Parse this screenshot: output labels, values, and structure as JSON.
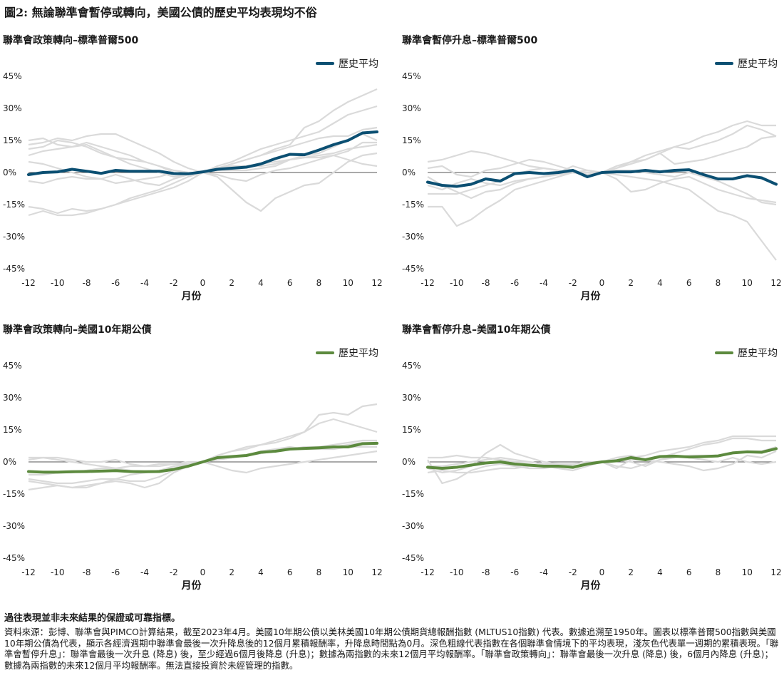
{
  "figure_title": "圖2: 無論聯準會暫停或轉向，美國公債的歷史平均表現均不俗",
  "colors": {
    "blue": "#0b4f72",
    "green": "#5c8a3e",
    "gray": "#dadada",
    "zero": "#555555"
  },
  "footnote_bold": "過往表現並非未來結果的保證或可靠指標。",
  "footnote": "資料來源：彭博、聯準會與PIMCO計算結果，截至2023年4月。美國10年期公債以美林美國10年期公債期貨總報酬指數 (MLTUS10指數) 代表。數據追溯至1950年。圖表以標準普爾500指數與美國10年期公債為代表，顯示各經濟週期中聯準會最後一次升降息後的12個月累積報酬率，升降息時間點為0月。深色粗線代表指數在各個聯準會情境下的平均表現，淺灰色代表單一週期的累積表現。「聯準會暫停升息」：聯準會最後一次升息 (降息) 後，至少經過6個月後降息 (升息)；數據為兩指數的未來12個月平均報酬率。「聯準會政策轉向」：聯準會最後一次升息 (降息) 後，6個月內降息 (升息)；數據為兩指數的未來12個月平均報酬率。無法直接投資於未經管理的指數。",
  "chart_data": [
    {
      "type": "line",
      "title": "聯準會政策轉向–標準普爾500",
      "xlabel": "月份",
      "x": [
        -12,
        -11,
        -10,
        -9,
        -8,
        -7,
        -6,
        -5,
        -4,
        -3,
        -2,
        -1,
        0,
        1,
        2,
        3,
        4,
        5,
        6,
        7,
        8,
        9,
        10,
        11,
        12
      ],
      "xticks": [
        "-12",
        "-10",
        "-8",
        "-6",
        "-4",
        "-2",
        "0",
        "2",
        "4",
        "6",
        "8",
        "10",
        "12"
      ],
      "yticks": [
        "45%",
        "30%",
        "15%",
        "0%",
        "-15%",
        "-30%",
        "-45%"
      ],
      "ylim": [
        -45,
        45
      ],
      "legend": "歷史平均",
      "color_key": "blue",
      "average": [
        -1,
        0,
        0.3,
        1.5,
        0.6,
        -0.4,
        1,
        0.6,
        0.6,
        0.6,
        -0.5,
        -0.6,
        0.3,
        1.5,
        2,
        2.5,
        4,
        6.5,
        8.5,
        8.3,
        10.5,
        13,
        15,
        18.5,
        19
      ],
      "series": [
        [
          -16,
          -17,
          -19,
          -17,
          -18,
          -17,
          -15,
          -13,
          -11,
          -9,
          -7,
          -4,
          0,
          -2,
          -8,
          -14,
          -18,
          -12,
          -9,
          -6,
          -5,
          0,
          5,
          8,
          9
        ],
        [
          -20,
          -18,
          -20,
          -20,
          -19,
          -17,
          -15,
          -12,
          -10,
          -8,
          -5,
          -2,
          0,
          2,
          4,
          6,
          8,
          11,
          13,
          21,
          24,
          29,
          33,
          36,
          39
        ],
        [
          11,
          12,
          15,
          14,
          12,
          9,
          7,
          4,
          2,
          0,
          -2,
          -1,
          0,
          3,
          5,
          8,
          11,
          13,
          15,
          17,
          19,
          23,
          27,
          29,
          31
        ],
        [
          15,
          16,
          13,
          12,
          13,
          10,
          7,
          6,
          5,
          3,
          0,
          -1,
          0,
          2,
          3,
          3,
          3,
          4,
          6,
          8,
          9,
          12,
          15,
          18,
          15
        ],
        [
          -4,
          -5,
          -3,
          -2,
          -3,
          -3,
          -5,
          -4,
          -3,
          -2,
          0,
          -1,
          0,
          -1,
          -3,
          -4,
          -1,
          1,
          2,
          4,
          6,
          8,
          10,
          14,
          14
        ],
        [
          5,
          4,
          2,
          0,
          -2,
          -3,
          -1,
          -3,
          -5,
          -6,
          -3,
          -1,
          0,
          1,
          2,
          3,
          4,
          5,
          6,
          7,
          8,
          9,
          11,
          12,
          13
        ],
        [
          8,
          10,
          11,
          12,
          14,
          12,
          10,
          8,
          5,
          3,
          1,
          0,
          0,
          2,
          4,
          6,
          8,
          10,
          12,
          14,
          16,
          17,
          17,
          20,
          21
        ],
        [
          13,
          14,
          16,
          15,
          17,
          18,
          18,
          15,
          12,
          9,
          5,
          2,
          0,
          1,
          1,
          1,
          2,
          3,
          6,
          7,
          7,
          8,
          6,
          4,
          3
        ]
      ]
    },
    {
      "type": "line",
      "title": "聯準會暫停升息–標準普爾500",
      "xlabel": "月份",
      "x": [
        -12,
        -11,
        -10,
        -9,
        -8,
        -7,
        -6,
        -5,
        -4,
        -3,
        -2,
        -1,
        0,
        1,
        2,
        3,
        4,
        5,
        6,
        7,
        8,
        9,
        10,
        11,
        12
      ],
      "xticks": [
        "-12",
        "-10",
        "-8",
        "-6",
        "-4",
        "-2",
        "0",
        "2",
        "4",
        "6",
        "8",
        "10",
        "12"
      ],
      "yticks": [
        "45%",
        "30%",
        "15%",
        "0%",
        "-15%",
        "-30%",
        "-45%"
      ],
      "ylim": [
        -45,
        45
      ],
      "legend": "歷史平均",
      "color_key": "blue",
      "average": [
        -4.5,
        -6,
        -6.5,
        -5.5,
        -3,
        -4,
        -0.5,
        0,
        -0.5,
        0,
        1,
        -2,
        0,
        0.3,
        0.3,
        1,
        0.3,
        1,
        1.3,
        -1,
        -3,
        -3,
        -1.5,
        -2.5,
        -5.5
      ],
      "series": [
        [
          -16,
          -16,
          -25,
          -22,
          -17,
          -13,
          -8,
          -6,
          -4,
          -2,
          0,
          -1,
          0,
          2,
          4,
          6,
          9,
          4,
          5,
          6,
          8,
          10,
          12,
          16,
          17
        ],
        [
          2,
          3,
          -1,
          -2,
          1,
          2,
          4,
          6,
          5,
          3,
          1,
          -1,
          0,
          3,
          5,
          8,
          10,
          12,
          11,
          13,
          15,
          18,
          22,
          20,
          17
        ],
        [
          -2,
          -6,
          -9,
          -12,
          -9,
          -8,
          -5,
          -3,
          -2,
          -1,
          0,
          0,
          0,
          -1,
          -2,
          -3,
          -4,
          -6,
          -8,
          -13,
          -18,
          -20,
          -23,
          -32,
          -41
        ],
        [
          -6,
          -8,
          -5,
          -3,
          -5,
          -6,
          -4,
          -3,
          -2,
          0,
          3,
          1,
          0,
          -3,
          -9,
          -8,
          -5,
          -3,
          -2,
          -5,
          -8,
          -10,
          -12,
          -13,
          -14
        ],
        [
          5,
          6,
          8,
          10,
          9,
          7,
          5,
          3,
          2,
          1,
          0,
          -1,
          0,
          2,
          5,
          6,
          9,
          12,
          14,
          17,
          19,
          22,
          24,
          22,
          22
        ],
        [
          -10,
          -10,
          -10,
          -8,
          -6,
          -4,
          -1,
          1,
          2,
          1,
          0,
          1,
          0,
          1,
          1,
          0,
          -1,
          -2,
          0,
          -2,
          -4,
          -7,
          -10,
          -14,
          -15
        ]
      ]
    },
    {
      "type": "line",
      "title": "聯準會政策轉向–美國10年期公債",
      "xlabel": "月份",
      "x": [
        -12,
        -11,
        -10,
        -9,
        -8,
        -7,
        -6,
        -5,
        -4,
        -3,
        -2,
        -1,
        0,
        1,
        2,
        3,
        4,
        5,
        6,
        7,
        8,
        9,
        10,
        11,
        12
      ],
      "xticks": [
        "-12",
        "-10",
        "-8",
        "-6",
        "-4",
        "-2",
        "0",
        "2",
        "4",
        "6",
        "8",
        "10",
        "12"
      ],
      "yticks": [
        "45%",
        "30%",
        "15%",
        "0%",
        "-15%",
        "-30%",
        "-45%"
      ],
      "ylim": [
        -45,
        45
      ],
      "legend": "歷史平均",
      "color_key": "green",
      "average": [
        -4.5,
        -4.8,
        -4.8,
        -4.6,
        -4.5,
        -4.3,
        -4.1,
        -4.5,
        -4.6,
        -4.5,
        -3.5,
        -2,
        0,
        2,
        2.5,
        3,
        4.5,
        5,
        6,
        6.3,
        6.6,
        7,
        7,
        8.5,
        8.7
      ],
      "series": [
        [
          -9,
          -10,
          -11,
          -12,
          -12,
          -10,
          -8,
          -6,
          -5,
          -4,
          -2,
          -1,
          0,
          3,
          5,
          7,
          8,
          9,
          11,
          14,
          22,
          23,
          22,
          26,
          27
        ],
        [
          -13,
          -12,
          -11,
          -12,
          -11,
          -10,
          -9,
          -10,
          -12,
          -10,
          -5,
          -2,
          0,
          3,
          5,
          6,
          8,
          10,
          12,
          14,
          18,
          20,
          18,
          16,
          14
        ],
        [
          2,
          2,
          1,
          0,
          -1,
          -2,
          -3,
          -4,
          -5,
          -4,
          -3,
          -1,
          0,
          1,
          2,
          3,
          5,
          6,
          7,
          6,
          7,
          8,
          9,
          10,
          10
        ],
        [
          -6,
          -6,
          -5,
          -5,
          -4,
          -3,
          -3,
          -2,
          -2,
          -2,
          -1,
          -1,
          0,
          -2,
          -4,
          -5,
          -3,
          -2,
          -1,
          0,
          1,
          2,
          3,
          4,
          5
        ],
        [
          1,
          2,
          2,
          1,
          0,
          0,
          1,
          -1,
          -2,
          -1,
          -1,
          0,
          0,
          2,
          2,
          3,
          4,
          5,
          6,
          7,
          7,
          7,
          8,
          9,
          9
        ],
        [
          -8,
          -9,
          -10,
          -10,
          -9,
          -8,
          -8,
          -9,
          -9,
          -7,
          -4,
          -1,
          0,
          1,
          2,
          3,
          4,
          5,
          6,
          6,
          6,
          6,
          7,
          7,
          7
        ]
      ]
    },
    {
      "type": "line",
      "title": "聯準會暫停升息–美國10年期公債",
      "xlabel": "月份",
      "x": [
        -12,
        -11,
        -10,
        -9,
        -8,
        -7,
        -6,
        -5,
        -4,
        -3,
        -2,
        -1,
        0,
        1,
        2,
        3,
        4,
        5,
        6,
        7,
        8,
        9,
        10,
        11,
        12
      ],
      "xticks": [
        "-12",
        "-10",
        "-8",
        "-6",
        "-4",
        "-2",
        "0",
        "2",
        "4",
        "6",
        "8",
        "10",
        "12"
      ],
      "yticks": [
        "45%",
        "30%",
        "15%",
        "0%",
        "-15%",
        "-30%",
        "-45%"
      ],
      "ylim": [
        -45,
        45
      ],
      "legend": "歷史平均",
      "color_key": "green",
      "average": [
        -2.5,
        -3,
        -2.5,
        -1.5,
        -0.5,
        0,
        -1,
        -1.5,
        -2,
        -2,
        -2.5,
        -1,
        0,
        0.5,
        2,
        1,
        2.5,
        2.7,
        2.3,
        2.5,
        2.8,
        4.2,
        4.7,
        4.5,
        6.2
      ],
      "series": [
        [
          1,
          -10,
          -8,
          -4,
          -2,
          -1,
          -2,
          -3,
          -3,
          -2,
          -1,
          0,
          0,
          1,
          2,
          3,
          5,
          6,
          7,
          9,
          10,
          12,
          12,
          12,
          12
        ],
        [
          -3,
          -5,
          -4,
          -2,
          4,
          8,
          4,
          2,
          0,
          -1,
          -2,
          -1,
          0,
          2,
          3,
          1,
          2,
          4,
          6,
          8,
          9,
          11,
          11,
          10,
          10
        ],
        [
          -2,
          -2,
          -1,
          0,
          1,
          2,
          1,
          0,
          -1,
          -2,
          -3,
          -1,
          0,
          -2,
          -3,
          -1,
          1,
          2,
          3,
          3,
          3,
          4,
          5,
          5,
          7
        ],
        [
          2,
          2,
          3,
          2,
          2,
          1,
          0,
          0,
          -1,
          -1,
          -1,
          0,
          0,
          1,
          0,
          -2,
          1,
          3,
          2,
          1,
          0,
          2,
          0,
          -1,
          0
        ],
        [
          -5,
          -4,
          -5,
          -5,
          -4,
          -3,
          -3,
          -2,
          -2,
          -3,
          -4,
          -2,
          0,
          -3,
          1,
          1,
          0,
          -1,
          -2,
          -4,
          -3,
          -1,
          3,
          2,
          5
        ]
      ]
    }
  ]
}
